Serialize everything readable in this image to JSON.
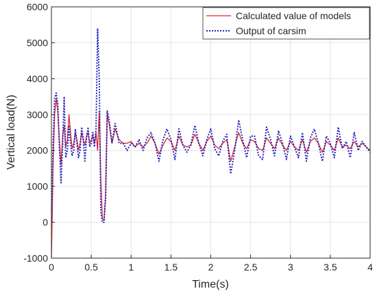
{
  "chart_data": {
    "type": "line",
    "title": "",
    "xlabel": "Time(s)",
    "ylabel": "Vertical load(N)",
    "xlim": [
      0,
      4
    ],
    "ylim": [
      -1000,
      6000
    ],
    "xticks": [
      0,
      0.5,
      1,
      1.5,
      2,
      2.5,
      3,
      3.5,
      4
    ],
    "xtick_labels": [
      "0",
      "0.5",
      "1",
      "1.5",
      "2",
      "2.5",
      "3",
      "3.5",
      "4"
    ],
    "yticks": [
      -1000,
      0,
      1000,
      2000,
      3000,
      4000,
      5000,
      6000
    ],
    "ytick_labels": [
      "-1000",
      "0",
      "1000",
      "2000",
      "3000",
      "4000",
      "5000",
      "6000"
    ],
    "grid": true,
    "legend_position": "top-right",
    "series": [
      {
        "name": "Calculated value of models",
        "color": "#d9252a",
        "style": "solid",
        "x": [
          0,
          0.01,
          0.02,
          0.04,
          0.06,
          0.08,
          0.1,
          0.12,
          0.14,
          0.16,
          0.18,
          0.2,
          0.22,
          0.24,
          0.26,
          0.28,
          0.3,
          0.32,
          0.34,
          0.36,
          0.38,
          0.4,
          0.42,
          0.44,
          0.46,
          0.48,
          0.5,
          0.52,
          0.54,
          0.56,
          0.58,
          0.6,
          0.62,
          0.64,
          0.66,
          0.68,
          0.7,
          0.72,
          0.74,
          0.76,
          0.78,
          0.8,
          0.85,
          0.9,
          0.95,
          1.0,
          1.05,
          1.1,
          1.15,
          1.2,
          1.25,
          1.3,
          1.35,
          1.4,
          1.45,
          1.5,
          1.55,
          1.6,
          1.65,
          1.7,
          1.75,
          1.8,
          1.85,
          1.9,
          1.95,
          2.0,
          2.05,
          2.1,
          2.15,
          2.2,
          2.25,
          2.3,
          2.35,
          2.4,
          2.45,
          2.5,
          2.55,
          2.6,
          2.65,
          2.7,
          2.75,
          2.8,
          2.85,
          2.9,
          2.95,
          3.0,
          3.05,
          3.1,
          3.15,
          3.2,
          3.25,
          3.3,
          3.35,
          3.4,
          3.45,
          3.5,
          3.55,
          3.6,
          3.65,
          3.7,
          3.75,
          3.8,
          3.85,
          3.9,
          3.95,
          4.0
        ],
        "y": [
          -1000,
          200,
          1500,
          3000,
          3450,
          3100,
          2300,
          1600,
          2400,
          2700,
          2100,
          2300,
          3000,
          2500,
          2050,
          2200,
          2500,
          2300,
          2000,
          2200,
          2500,
          2300,
          2150,
          2400,
          2500,
          2200,
          2300,
          2400,
          2200,
          2500,
          2000,
          3100,
          1200,
          100,
          50,
          800,
          3000,
          2800,
          2500,
          2200,
          2400,
          2600,
          2300,
          2200,
          2200,
          2250,
          2100,
          2200,
          2100,
          2200,
          2400,
          2200,
          1900,
          2150,
          2350,
          2250,
          2000,
          2400,
          2150,
          2100,
          2150,
          2450,
          2200,
          2000,
          2250,
          2400,
          2150,
          2050,
          2200,
          2300,
          1700,
          2100,
          2500,
          2200,
          2050,
          2300,
          2250,
          2050,
          2000,
          2350,
          2200,
          2050,
          2350,
          2150,
          2000,
          2250,
          2100,
          2000,
          2300,
          1950,
          2250,
          2350,
          2200,
          1950,
          2250,
          2150,
          2000,
          2350,
          2100,
          2150,
          2050,
          2250,
          2100,
          2200,
          2100,
          2000
        ]
      },
      {
        "name": "Output of carsim",
        "color": "#1f1fbf",
        "style": "dotted",
        "x": [
          0,
          0.01,
          0.02,
          0.04,
          0.06,
          0.08,
          0.1,
          0.12,
          0.14,
          0.16,
          0.18,
          0.2,
          0.22,
          0.24,
          0.26,
          0.28,
          0.3,
          0.32,
          0.34,
          0.36,
          0.38,
          0.4,
          0.42,
          0.44,
          0.46,
          0.48,
          0.5,
          0.52,
          0.54,
          0.56,
          0.58,
          0.6,
          0.62,
          0.64,
          0.66,
          0.68,
          0.7,
          0.72,
          0.74,
          0.76,
          0.78,
          0.8,
          0.85,
          0.9,
          0.95,
          1.0,
          1.05,
          1.1,
          1.15,
          1.2,
          1.25,
          1.3,
          1.35,
          1.4,
          1.45,
          1.5,
          1.55,
          1.6,
          1.65,
          1.7,
          1.75,
          1.8,
          1.85,
          1.9,
          1.95,
          2.0,
          2.05,
          2.1,
          2.15,
          2.2,
          2.25,
          2.3,
          2.35,
          2.4,
          2.45,
          2.5,
          2.55,
          2.6,
          2.65,
          2.7,
          2.75,
          2.8,
          2.85,
          2.9,
          2.95,
          3.0,
          3.05,
          3.1,
          3.15,
          3.2,
          3.25,
          3.3,
          3.35,
          3.4,
          3.45,
          3.5,
          3.55,
          3.6,
          3.65,
          3.7,
          3.75,
          3.8,
          3.85,
          3.9,
          3.95,
          4.0
        ],
        "y": [
          0,
          800,
          2200,
          3450,
          3600,
          3300,
          2100,
          1100,
          2100,
          3500,
          1800,
          2000,
          2700,
          2200,
          1850,
          2000,
          2600,
          2200,
          1800,
          2000,
          2650,
          2300,
          1700,
          2350,
          2650,
          2100,
          2200,
          2500,
          2100,
          2600,
          5400,
          4000,
          300,
          0,
          0,
          700,
          3100,
          2900,
          2600,
          2200,
          2500,
          2750,
          2200,
          2200,
          2000,
          2200,
          2100,
          2300,
          2000,
          2350,
          2500,
          2200,
          1700,
          2300,
          2600,
          2300,
          1750,
          2600,
          2150,
          1950,
          2150,
          2700,
          2200,
          1850,
          2300,
          2600,
          2050,
          1850,
          2250,
          2450,
          1350,
          2000,
          2850,
          2300,
          1800,
          2400,
          2400,
          1850,
          1750,
          2650,
          2300,
          1850,
          2550,
          2200,
          1750,
          2400,
          2100,
          1800,
          2500,
          1700,
          2350,
          2600,
          2200,
          1700,
          2400,
          2200,
          1800,
          2650,
          2050,
          2250,
          1800,
          2500,
          2000,
          2250,
          2100,
          1950
        ]
      }
    ]
  }
}
